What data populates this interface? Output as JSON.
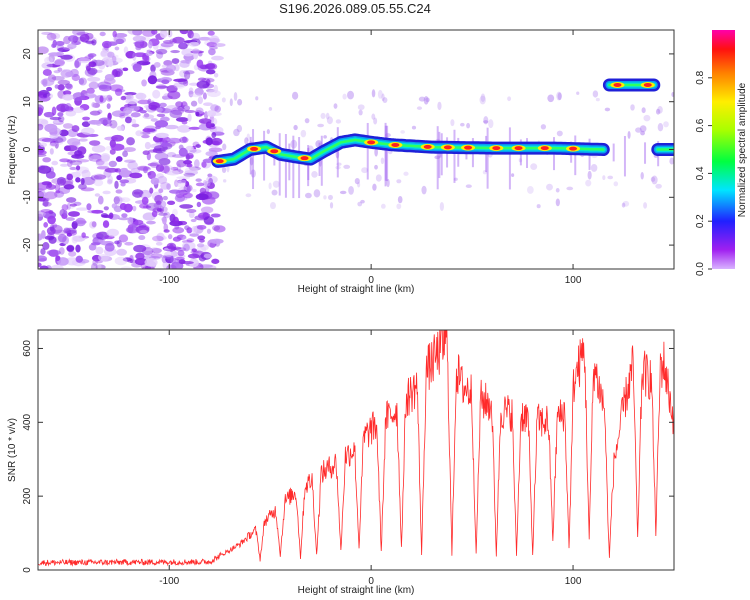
{
  "title": "S196.2026.089.05.55.C24",
  "colors": {
    "snr_line": "#ff2a2a",
    "scatter": "#7a1fe0",
    "frame": "#333333"
  },
  "chart_data": [
    {
      "type": "heatmap",
      "name": "spectrogram",
      "xlabel": "Height of straight line (km)",
      "ylabel": "Frequency (Hz)",
      "xlim": [
        -165,
        150
      ],
      "ylim": [
        -25,
        25
      ],
      "xticks": [
        {
          "value": -100,
          "label": "-100"
        },
        {
          "value": 0,
          "label": "0"
        },
        {
          "value": 100,
          "label": "100"
        }
      ],
      "yticks": [
        {
          "value": 20,
          "label": "20"
        },
        {
          "value": 10,
          "label": "10"
        },
        {
          "value": 0,
          "label": "0"
        },
        {
          "value": -10,
          "label": "-10"
        },
        {
          "value": -20,
          "label": "-20"
        }
      ],
      "colorbar": {
        "label": "Normalized spectral amplitude",
        "range": [
          0,
          1
        ],
        "ticks": [
          {
            "value": 0.0,
            "label": "0.0"
          },
          {
            "value": 0.2,
            "label": "0.2"
          },
          {
            "value": 0.4,
            "label": "0.4"
          },
          {
            "value": 0.6,
            "label": "0.6"
          },
          {
            "value": 0.8,
            "label": "0.8"
          }
        ]
      },
      "noise_region_x": [
        -165,
        -75
      ],
      "track": [
        {
          "x": -76,
          "f": -2.5
        },
        {
          "x": -68,
          "f": -2
        },
        {
          "x": -60,
          "f": 0
        },
        {
          "x": -52,
          "f": 0.5
        },
        {
          "x": -45,
          "f": -1
        },
        {
          "x": -38,
          "f": -1.5
        },
        {
          "x": -30,
          "f": -2
        },
        {
          "x": -24,
          "f": -0.5
        },
        {
          "x": -15,
          "f": 1.5
        },
        {
          "x": -8,
          "f": 2
        },
        {
          "x": 0,
          "f": 1.5
        },
        {
          "x": 10,
          "f": 1
        },
        {
          "x": 30,
          "f": 0.5
        },
        {
          "x": 60,
          "f": 0.3
        },
        {
          "x": 90,
          "f": 0.3
        },
        {
          "x": 115,
          "f": 0
        }
      ],
      "peaks": [
        -75,
        -58,
        -48,
        -33,
        0,
        12,
        28,
        38,
        48,
        62,
        73,
        86,
        100
      ],
      "upper_band": {
        "x": [
          118,
          140
        ],
        "f": 13.5,
        "peaks": [
          122,
          137
        ]
      },
      "right_band": {
        "x": [
          142,
          150
        ],
        "f": 0
      }
    },
    {
      "type": "line",
      "name": "snr",
      "xlabel": "Height of straight line (km)",
      "ylabel": "SNR (10 * v/v)",
      "xlim": [
        -165,
        150
      ],
      "ylim": [
        0,
        650
      ],
      "xticks": [
        {
          "value": -100,
          "label": "-100"
        },
        {
          "value": 0,
          "label": "0"
        },
        {
          "value": 100,
          "label": "100"
        }
      ],
      "yticks": [
        {
          "value": 600,
          "label": "600"
        },
        {
          "value": 400,
          "label": "400"
        },
        {
          "value": 200,
          "label": "200"
        },
        {
          "value": 0,
          "label": "0"
        }
      ],
      "envelope": [
        {
          "x": -165,
          "v": 20
        },
        {
          "x": -80,
          "v": 22
        },
        {
          "x": -65,
          "v": 70
        },
        {
          "x": -55,
          "v": 120
        },
        {
          "x": -40,
          "v": 200
        },
        {
          "x": -25,
          "v": 260
        },
        {
          "x": -10,
          "v": 320
        },
        {
          "x": 0,
          "v": 380
        },
        {
          "x": 10,
          "v": 420
        },
        {
          "x": 20,
          "v": 480
        },
        {
          "x": 30,
          "v": 560
        },
        {
          "x": 37,
          "v": 620
        },
        {
          "x": 45,
          "v": 500
        },
        {
          "x": 55,
          "v": 460
        },
        {
          "x": 65,
          "v": 430
        },
        {
          "x": 75,
          "v": 420
        },
        {
          "x": 85,
          "v": 400
        },
        {
          "x": 95,
          "v": 420
        },
        {
          "x": 100,
          "v": 500
        },
        {
          "x": 105,
          "v": 590
        },
        {
          "x": 110,
          "v": 560
        },
        {
          "x": 115,
          "v": 450
        },
        {
          "x": 120,
          "v": 280
        },
        {
          "x": 125,
          "v": 440
        },
        {
          "x": 130,
          "v": 560
        },
        {
          "x": 138,
          "v": 520
        },
        {
          "x": 145,
          "v": 560
        },
        {
          "x": 150,
          "v": 400
        }
      ],
      "dips": [
        {
          "x": -55,
          "v": 30
        },
        {
          "x": -45,
          "v": 40
        },
        {
          "x": -35,
          "v": 35
        },
        {
          "x": -27,
          "v": 40
        },
        {
          "x": -15,
          "v": 50
        },
        {
          "x": -6,
          "v": 60
        },
        {
          "x": 5,
          "v": 50
        },
        {
          "x": 15,
          "v": 60
        },
        {
          "x": 25,
          "v": 40
        },
        {
          "x": 40,
          "v": 40
        },
        {
          "x": 52,
          "v": 40
        },
        {
          "x": 62,
          "v": 40
        },
        {
          "x": 72,
          "v": 40
        },
        {
          "x": 80,
          "v": 40
        },
        {
          "x": 90,
          "v": 80
        },
        {
          "x": 98,
          "v": 60
        },
        {
          "x": 108,
          "v": 80
        },
        {
          "x": 118,
          "v": 30
        },
        {
          "x": 132,
          "v": 80
        },
        {
          "x": 141,
          "v": 100
        }
      ]
    }
  ]
}
